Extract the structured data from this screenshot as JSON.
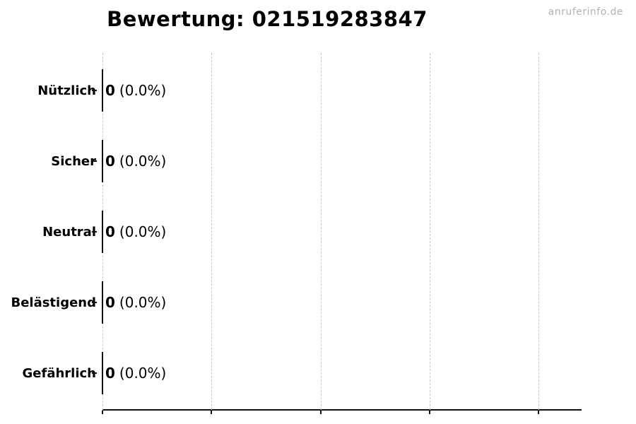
{
  "page": {
    "watermark": "anruferinfo.de"
  },
  "chart_data": {
    "type": "bar",
    "orientation": "horizontal",
    "title": "Bewertung: 021519283847",
    "categories": [
      "Nützlich",
      "Sicher",
      "Neutral",
      "Belästigend",
      "Gefährlich"
    ],
    "values": [
      0,
      0,
      0,
      0,
      0
    ],
    "count_labels": [
      "0",
      "0",
      "0",
      "0",
      "0"
    ],
    "pct_labels": [
      "(0.0%)",
      "(0.0%)",
      "(0.0%)",
      "(0.0%)",
      "(0.0%)"
    ],
    "xlabel": "",
    "ylabel": "",
    "grid": true,
    "grid_style": "dashed-vertical",
    "legend": false,
    "x_gridlines_count": 5,
    "x_tick_labels": [],
    "style": {
      "background": "#ffffff",
      "text_color": "#000000",
      "grid_color": "#c9c9c9",
      "axis_color": "#111111",
      "bar_edge_color": "#111111",
      "watermark_color": "#b4b4b4"
    }
  }
}
